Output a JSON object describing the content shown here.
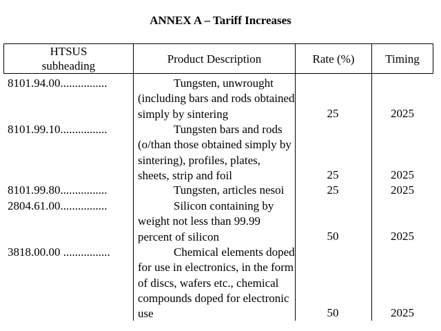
{
  "title": "ANNEX A – Tariff Increases",
  "headers": {
    "code_line1": "HTSUS",
    "code_line2": "subheading",
    "description": "Product Description",
    "rate": "Rate (%)",
    "timing": "Timing"
  },
  "rows": [
    {
      "code": "8101.94.00................",
      "description": "Tungsten, unwrought (including bars and rods obtained simply by sintering",
      "rate": "25",
      "timing": "2025"
    },
    {
      "code": "8101.99.10................",
      "description": "Tungsten bars and rods (o/than those obtained simply by sintering), profiles, plates, sheets, strip and foil",
      "rate": "25",
      "timing": "2025"
    },
    {
      "code": "8101.99.80................",
      "description": "Tungsten, articles nesoi",
      "rate": "25",
      "timing": "2025"
    },
    {
      "code": "2804.61.00................",
      "description": "Silicon containing by weight not less than 99.99 percent of silicon",
      "rate": "50",
      "timing": "2025"
    },
    {
      "code": "3818.00.00 ................",
      "description": "Chemical elements doped for use in electronics, in the form of discs, wafers etc., chemical compounds doped for electronic use",
      "rate": "50",
      "timing": "2025"
    }
  ]
}
